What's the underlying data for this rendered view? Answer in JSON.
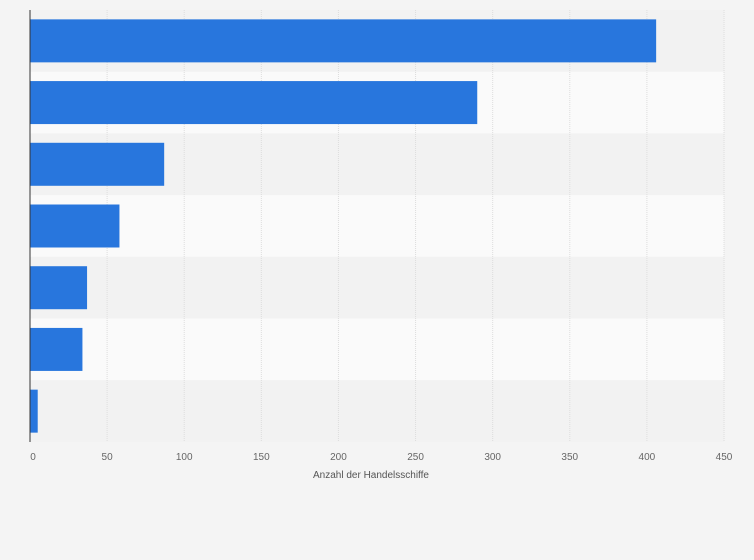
{
  "chart_data": {
    "type": "bar",
    "orientation": "horizontal",
    "title": "",
    "xlabel": "Anzahl der Handelsschiffe",
    "ylabel": "",
    "categories": [
      "",
      "",
      "",
      "",
      "",
      "",
      ""
    ],
    "values": [
      406,
      290,
      87,
      58,
      37,
      34,
      5
    ],
    "xlim": [
      0,
      450
    ],
    "xticks": [
      0,
      50,
      100,
      150,
      200,
      250,
      300,
      350,
      400,
      450
    ],
    "grid": true,
    "legend": "none",
    "colors": {
      "bar": "#2876dd",
      "band_light": "#fafafa",
      "band_dark": "#f2f2f2",
      "grid": "#dddddd",
      "axis": "#333333"
    }
  }
}
